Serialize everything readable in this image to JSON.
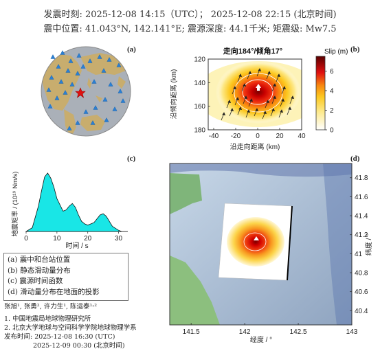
{
  "header": {
    "origin_time_line": "发震时刻: 2025-12-08 14:15（UTC）； 2025-12-08  22:15 (北京时间)",
    "location_line": "震中位置: 41.043°N,  142.141°E;  震源深度: 44.1千米; 矩震级: Mw7.5"
  },
  "panels": {
    "a": {
      "label": "(a)"
    },
    "b": {
      "label": "(b)",
      "title": "走向184°/倾角17°",
      "colorbar_label": "Slip (m)"
    },
    "c": {
      "label": "(c)"
    },
    "d": {
      "label": "(d)"
    }
  },
  "legend": {
    "items": [
      "(a) 震中和台站位置",
      "(b) 静态滑动量分布",
      "(c) 震源时间函数",
      "(d) 滑动量分布在地面的投影"
    ]
  },
  "credits": {
    "authors": "张旭¹, 张勇², 许力生¹, 陈运泰¹˒²",
    "affiliation_1": "1. 中国地震局地球物理研究所",
    "affiliation_2": "2. 北京大学地球与空间科学学院地球物理学系",
    "published_utc": "发布时间: 2025-12-08  16:30 (UTC)",
    "published_bj": "2025-12-09  00:30 (北京时间)"
  },
  "colors": {
    "ocean": "#aab0b8",
    "land": "#c8ad6e",
    "station": "#2a7fd4",
    "epicenter": "#e01010",
    "stf_fill": "#19e6e6"
  },
  "chart_data": [
    {
      "type": "heatmap",
      "panel": "b",
      "xlabel": "沿走向距离 (km)",
      "ylabel": "沿倾向距离 (km)",
      "xlim": [
        -45,
        40
      ],
      "ylim": [
        120,
        180
      ],
      "x_ticks": [
        "-40",
        "-20",
        "0",
        "20",
        "40"
      ],
      "y_ticks": [
        "120",
        "140",
        "160",
        "180"
      ],
      "colorbar_ticks": [
        "0",
        "2",
        "4",
        "6"
      ],
      "colorbar_range": [
        0,
        7.5
      ],
      "peak_slip_m": 7.5,
      "peak_location_km": [
        0,
        150
      ]
    },
    {
      "type": "area",
      "panel": "c",
      "xlabel": "时间 / s",
      "ylabel": "地震矩率 / (10¹⁹ Nm/s)",
      "xlim": [
        0,
        33
      ],
      "x_ticks": [
        "0",
        "10",
        "20",
        "30"
      ],
      "x": [
        0,
        2,
        4,
        5,
        6,
        7,
        8,
        9,
        10,
        12,
        13,
        14,
        15,
        16,
        17,
        18,
        19,
        20,
        22,
        23,
        24,
        25,
        26,
        27,
        28,
        30,
        31
      ],
      "values": [
        0,
        0.3,
        2.0,
        3.2,
        4.3,
        4.6,
        4.2,
        3.5,
        2.6,
        1.6,
        1.7,
        2.0,
        2.2,
        1.9,
        1.3,
        0.8,
        0.6,
        0.5,
        0.7,
        1.0,
        1.3,
        1.4,
        1.2,
        0.8,
        0.4,
        0.1,
        0
      ]
    },
    {
      "type": "heatmap",
      "panel": "d",
      "xlabel": "经度 / °",
      "ylabel": "纬度 / °",
      "xlim": [
        141.3,
        143.0
      ],
      "ylim": [
        40.25,
        41.95
      ],
      "x_ticks": [
        "141.5",
        "142",
        "142.5",
        "143"
      ],
      "y_ticks": [
        "40.4",
        "40.6",
        "40.8",
        "41",
        "41.2",
        "41.4",
        "41.6",
        "41.8"
      ]
    }
  ]
}
